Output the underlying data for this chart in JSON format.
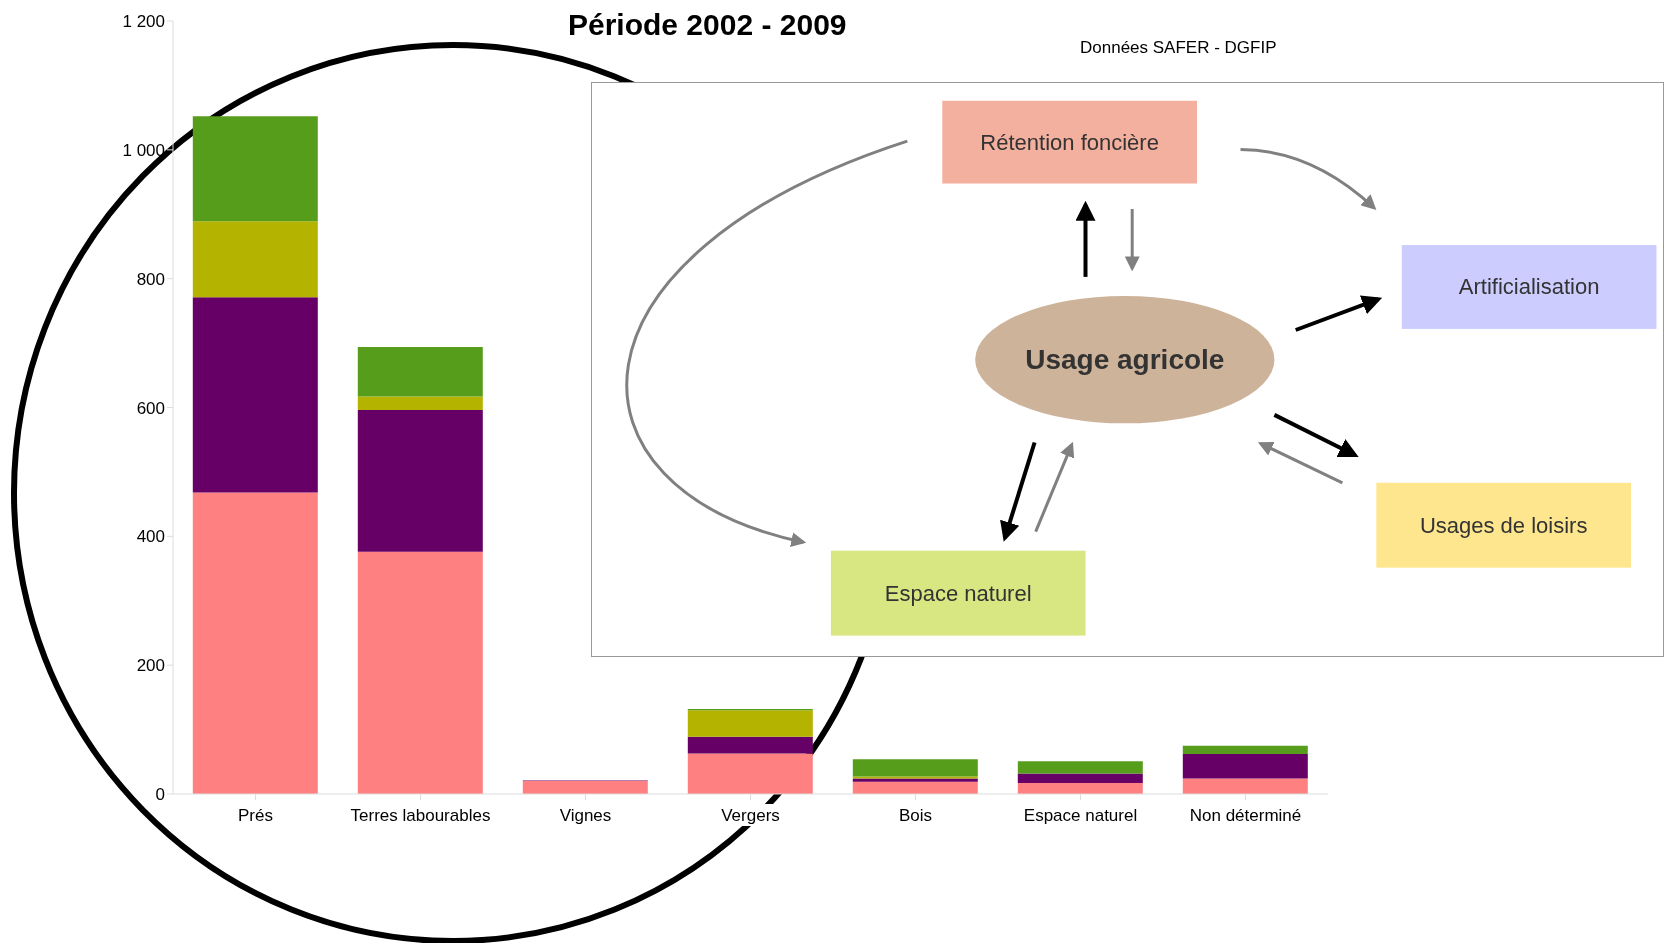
{
  "chart_data": [
    {
      "type": "bar",
      "title": "Période 2002 - 2009",
      "annotations": [
        "Données SAFER - DGFIP"
      ],
      "categories": [
        "Prés",
        "Terres labourables",
        "Vignes",
        "Vergers",
        "Bois",
        "Espace naturel",
        "Non déterminé"
      ],
      "stacked": true,
      "grid": false,
      "legend": false,
      "series": [
        {
          "color": "#ff8080",
          "values": [
            468,
            376,
            20,
            63,
            19,
            17,
            24
          ]
        },
        {
          "color": "#660066",
          "values": [
            303,
            220,
            1,
            26,
            5,
            15,
            38
          ]
        },
        {
          "color": "#b3b300",
          "values": [
            118,
            21,
            0,
            41,
            3,
            0,
            0
          ]
        },
        {
          "color": "#579d1c",
          "values": [
            163,
            77,
            0,
            2,
            27,
            19,
            13
          ]
        }
      ],
      "ylim": [
        0,
        1200
      ],
      "yticks": [
        0,
        200,
        400,
        600,
        800,
        {
          "value": 1000,
          "label": "1 000"
        },
        {
          "value": 1200,
          "label": "1 200"
        }
      ]
    },
    {
      "type": "other",
      "annotations": [
        "Rétention foncière",
        "Artificialisation",
        "Usage agricole",
        "Usages de loisirs",
        "Espace naturel"
      ]
    }
  ]
}
